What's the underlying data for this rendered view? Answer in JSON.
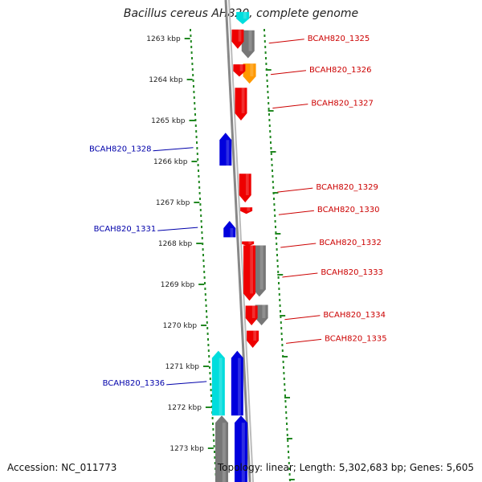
{
  "title": "Bacillus cereus AH820, complete genome",
  "footer": {
    "accession": "Accession: NC_011773",
    "topology": "Topology: linear; Length: 5,302,683 bp; Genes: 5,605"
  },
  "colors": {
    "forward_gene": "#ee0000",
    "reverse_gene": "#0000dd",
    "forward_label": "#cc0000",
    "reverse_label": "#0000aa",
    "rna_cyan": "#00dddd",
    "other_orange": "#ff9900",
    "pseudo_gray": "#777777",
    "ruler_dots": "#228822"
  },
  "ruler": {
    "unit": "kbp",
    "ticks": [
      {
        "kbp": 1263,
        "label": "1263 kbp"
      },
      {
        "kbp": 1264,
        "label": "1264 kbp"
      },
      {
        "kbp": 1265,
        "label": "1265 kbp"
      },
      {
        "kbp": 1266,
        "label": "1266 kbp"
      },
      {
        "kbp": 1267,
        "label": "1267 kbp"
      },
      {
        "kbp": 1268,
        "label": "1268 kbp"
      },
      {
        "kbp": 1269,
        "label": "1269 kbp"
      },
      {
        "kbp": 1270,
        "label": "1270 kbp"
      },
      {
        "kbp": 1271,
        "label": "1271 kbp"
      },
      {
        "kbp": 1272,
        "label": "1272 kbp"
      },
      {
        "kbp": 1273,
        "label": "1273 kbp"
      }
    ]
  },
  "genes": [
    {
      "id": "g1325",
      "label": "BCAH820_1325",
      "strand": "+",
      "start_kbp": 1262.78,
      "end_kbp": 1263.25,
      "type": "cds"
    },
    {
      "id": "g1326",
      "label": "BCAH820_1326",
      "strand": "+",
      "start_kbp": 1263.63,
      "end_kbp": 1263.93,
      "type": "cds"
    },
    {
      "id": "g1327",
      "label": "BCAH820_1327",
      "strand": "+",
      "start_kbp": 1264.2,
      "end_kbp": 1265.0,
      "type": "cds"
    },
    {
      "id": "g1328",
      "label": "BCAH820_1328",
      "strand": "-",
      "start_kbp": 1265.3,
      "end_kbp": 1266.1,
      "type": "cds"
    },
    {
      "id": "g1329",
      "label": "BCAH820_1329",
      "strand": "+",
      "start_kbp": 1266.3,
      "end_kbp": 1267.0,
      "type": "cds"
    },
    {
      "id": "g1330",
      "label": "BCAH820_1330",
      "strand": "+",
      "start_kbp": 1267.12,
      "end_kbp": 1267.28,
      "type": "cds"
    },
    {
      "id": "g1331",
      "label": "BCAH820_1331",
      "strand": "-",
      "start_kbp": 1267.45,
      "end_kbp": 1267.85,
      "type": "cds"
    },
    {
      "id": "g1332",
      "label": "BCAH820_1332",
      "strand": "+",
      "start_kbp": 1267.95,
      "end_kbp": 1268.05,
      "type": "cds"
    },
    {
      "id": "g1333",
      "label": "BCAH820_1333",
      "strand": "+",
      "start_kbp": 1268.05,
      "end_kbp": 1269.4,
      "type": "cds"
    },
    {
      "id": "g1334",
      "label": "BCAH820_1334",
      "strand": "+",
      "start_kbp": 1269.52,
      "end_kbp": 1270.0,
      "type": "cds"
    },
    {
      "id": "g1335",
      "label": "BCAH820_1335",
      "strand": "+",
      "start_kbp": 1270.13,
      "end_kbp": 1270.55,
      "type": "cds"
    },
    {
      "id": "g1336",
      "label": "BCAH820_1336",
      "strand": "-",
      "start_kbp": 1270.62,
      "end_kbp": 1272.2,
      "type": "cds"
    }
  ],
  "extra_features": [
    {
      "kind": "rna_cyan",
      "strand": "+",
      "start_kbp": 1262.35,
      "end_kbp": 1262.65
    },
    {
      "kind": "pseudo_gray",
      "strand": "+",
      "start_kbp": 1262.8,
      "end_kbp": 1263.48
    },
    {
      "kind": "other_orange",
      "strand": "+",
      "start_kbp": 1263.61,
      "end_kbp": 1264.1
    },
    {
      "kind": "pseudo_gray",
      "strand": "+",
      "start_kbp": 1268.05,
      "end_kbp": 1269.3
    },
    {
      "kind": "pseudo_gray",
      "strand": "+",
      "start_kbp": 1269.5,
      "end_kbp": 1270.0
    },
    {
      "kind": "rna_cyan",
      "strand": "-",
      "start_kbp": 1270.62,
      "end_kbp": 1272.2
    },
    {
      "kind": "pseudo_gray",
      "strand": "-",
      "start_kbp": 1272.2,
      "end_kbp": 1273.9
    },
    {
      "kind": "reverse_gene",
      "strand": "-",
      "start_kbp": 1272.2,
      "end_kbp": 1273.9
    }
  ]
}
